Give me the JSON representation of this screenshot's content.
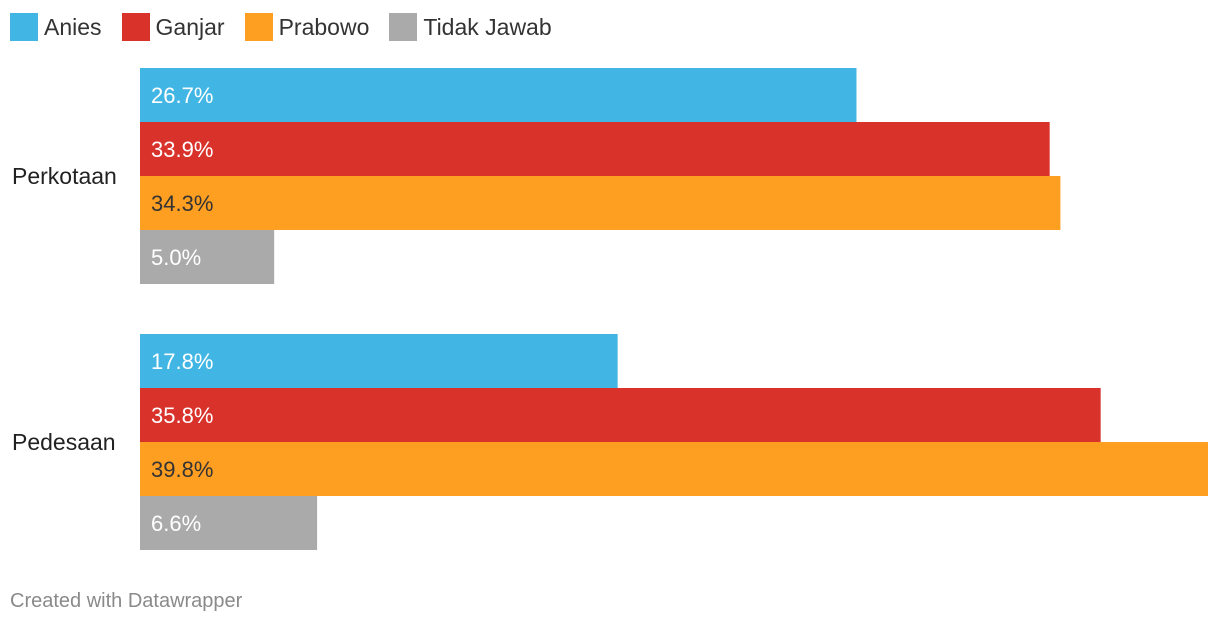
{
  "chart_data": {
    "type": "bar",
    "orientation": "horizontal",
    "categories": [
      "Perkotaan",
      "Pedesaan"
    ],
    "series": [
      {
        "name": "Anies",
        "color": "#41b6e4",
        "values": [
          26.7,
          17.8
        ],
        "labels": [
          "26.7%",
          "17.8%"
        ],
        "label_color": "#ffffff"
      },
      {
        "name": "Ganjar",
        "color": "#d9322b",
        "values": [
          33.9,
          35.8
        ],
        "labels": [
          "33.9%",
          "35.8%"
        ],
        "label_color": "#ffffff"
      },
      {
        "name": "Prabowo",
        "color": "#ff9f22",
        "values": [
          34.3,
          39.8
        ],
        "labels": [
          "34.3%",
          "39.8%"
        ],
        "label_color": "#333333"
      },
      {
        "name": "Tidak Jawab",
        "color": "#aaaaaa",
        "values": [
          5.0,
          6.6
        ],
        "labels": [
          "5.0%",
          "6.6%"
        ],
        "label_color": "#ffffff"
      }
    ],
    "xlim": [
      0,
      39.8
    ],
    "grid": false,
    "legend_position": "top-left"
  },
  "footer": {
    "credit": "Created with Datawrapper"
  }
}
